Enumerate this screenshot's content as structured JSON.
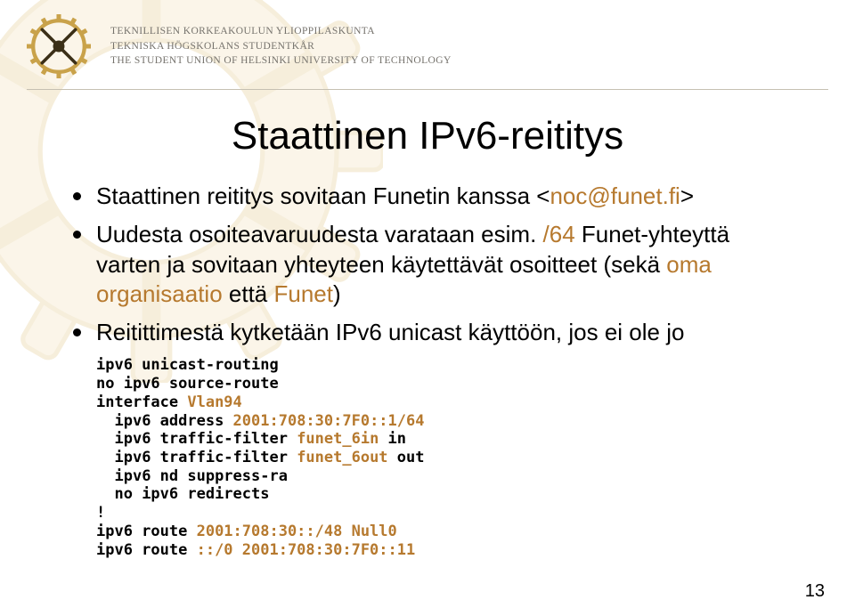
{
  "colors": {
    "accent": "#b6792e",
    "text": "#000000",
    "muted": "#75726c",
    "rule": "#c6c0b2",
    "watermark": "#f3e0b9",
    "watermark_stroke": "#e2c88b",
    "logo_gold": "#c9a24a",
    "logo_dark": "#3b2f17"
  },
  "header": {
    "org_line1": "TEKNILLISEN KORKEAKOULUN YLIOPPILASKUNTA",
    "org_line2": "TEKNISKA HÖGSKOLANS STUDENTKÅR",
    "org_line3": "THE STUDENT UNION OF HELSINKI UNIVERSITY OF TECHNOLOGY"
  },
  "slide": {
    "title": "Staattinen IPv6-reititys",
    "page_number": "13",
    "bullets": [
      {
        "pre": "Staattinen reititys sovitaan Funetin kanssa <",
        "accent": "noc@funet.fi",
        "post": ">"
      },
      {
        "pre": "Uudesta osoiteavaruudesta varataan esim. ",
        "accent": "/64",
        "post": " Funet-yhteyttä varten ja sovitaan yhteyteen käytettävät osoitteet (sekä ",
        "accent2": "oma organisaatio",
        "post2": " että ",
        "accent3": "Funet",
        "post3": ")"
      },
      {
        "pre": "Reitittimestä kytketään IPv6 unicast käyttöön, jos ei ole jo"
      }
    ],
    "code_block": {
      "font_size_pt": 13,
      "lines": [
        {
          "cmd": "ipv6 unicast-routing"
        },
        {
          "cmd": "no ipv6 source-route"
        },
        {
          "cmd": "interface ",
          "arg": "Vlan94"
        },
        {
          "indent": "  ",
          "cmd": "ipv6 address ",
          "arg": "2001:708:30:7F0::1/64"
        },
        {
          "indent": "  ",
          "cmd": "ipv6 traffic-filter ",
          "arg": "funet_6in",
          "cmd2": " in"
        },
        {
          "indent": "  ",
          "cmd": "ipv6 traffic-filter ",
          "arg": "funet_6out",
          "cmd2": " out"
        },
        {
          "indent": "  ",
          "cmd": "ipv6 nd suppress-ra"
        },
        {
          "indent": "  ",
          "cmd": "no ipv6 redirects"
        },
        {
          "cmd": "!"
        },
        {
          "cmd": "ipv6 route ",
          "arg": "2001:708:30::/48 Null0"
        },
        {
          "cmd": "ipv6 route ",
          "arg": "::/0 2001:708:30:7F0::11"
        }
      ]
    }
  }
}
